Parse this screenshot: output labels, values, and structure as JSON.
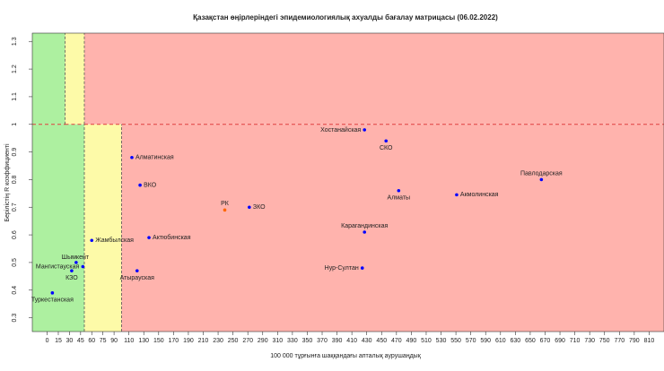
{
  "chart_data": {
    "type": "scatter",
    "title": "Қазақстан өңірлеріндегі эпидемиологиялық ахуалды бағалау матрицасы  (06.02.2022)",
    "x_label": "100 000 тұрғынға шаққандағы апталық аурушаңдық",
    "y_label": "Берілістің R коэффициенті",
    "labels": [
      "Хостанайская",
      "СКО",
      "Павлодарская",
      "Алматы",
      "Акмолинская",
      "Алматинская",
      "ВКО",
      "РК",
      "ЗКО",
      "Карагандинская",
      "Актюбинская",
      "Жамбылская",
      "Шымкент",
      "Мангистауская",
      "КЗО",
      "Атырауская",
      "Нур-Султан",
      "Туркестанская"
    ],
    "x": [
      427,
      456,
      665,
      473,
      551,
      114,
      125,
      239,
      272,
      427,
      137,
      60,
      39,
      48,
      33,
      121,
      424,
      7
    ],
    "y": [
      0.98,
      0.94,
      0.8,
      0.76,
      0.745,
      0.88,
      0.78,
      0.69,
      0.7,
      0.61,
      0.59,
      0.58,
      0.5,
      0.485,
      0.47,
      0.47,
      0.48,
      0.39
    ],
    "colors": [
      "#0000ff",
      "#0000ff",
      "#0000ff",
      "#0000ff",
      "#0000ff",
      "#0000ff",
      "#0000ff",
      "#ff6600",
      "#0000ff",
      "#0000ff",
      "#0000ff",
      "#0000ff",
      "#0000ff",
      "#0000ff",
      "#0000ff",
      "#0000ff",
      "#0000ff",
      "#0000ff"
    ],
    "regions": [
      {
        "x": [
          -20,
          24
        ],
        "y": [
          1.0,
          1.33
        ],
        "color": "#adf0a0"
      },
      {
        "x": [
          24,
          50
        ],
        "y": [
          1.0,
          1.33
        ],
        "color": "#fdfaa8"
      },
      {
        "x": [
          50,
          830
        ],
        "y": [
          1.0,
          1.33
        ],
        "color": "#ffb3ad"
      },
      {
        "x": [
          -20,
          50
        ],
        "y": [
          0.25,
          1.0
        ],
        "color": "#adf0a0"
      },
      {
        "x": [
          50,
          100
        ],
        "y": [
          0.25,
          1.0
        ],
        "color": "#fdfaa8"
      },
      {
        "x": [
          100,
          830
        ],
        "y": [
          0.25,
          1.0
        ],
        "color": "#ffb3ad"
      }
    ],
    "xlim": [
      -20,
      830
    ],
    "ylim": [
      0.25,
      1.33
    ],
    "xticks": [
      0,
      15,
      30,
      45,
      60,
      75,
      90,
      110,
      130,
      150,
      170,
      190,
      210,
      230,
      250,
      270,
      290,
      310,
      330,
      350,
      370,
      390,
      410,
      430,
      450,
      470,
      490,
      510,
      530,
      550,
      570,
      590,
      610,
      630,
      650,
      670,
      690,
      710,
      730,
      750,
      770,
      790,
      810
    ],
    "yticks": [
      0.3,
      0.4,
      0.5,
      0.6,
      0.7,
      0.8,
      0.9,
      1.0,
      1.1,
      1.2,
      1.3
    ]
  }
}
